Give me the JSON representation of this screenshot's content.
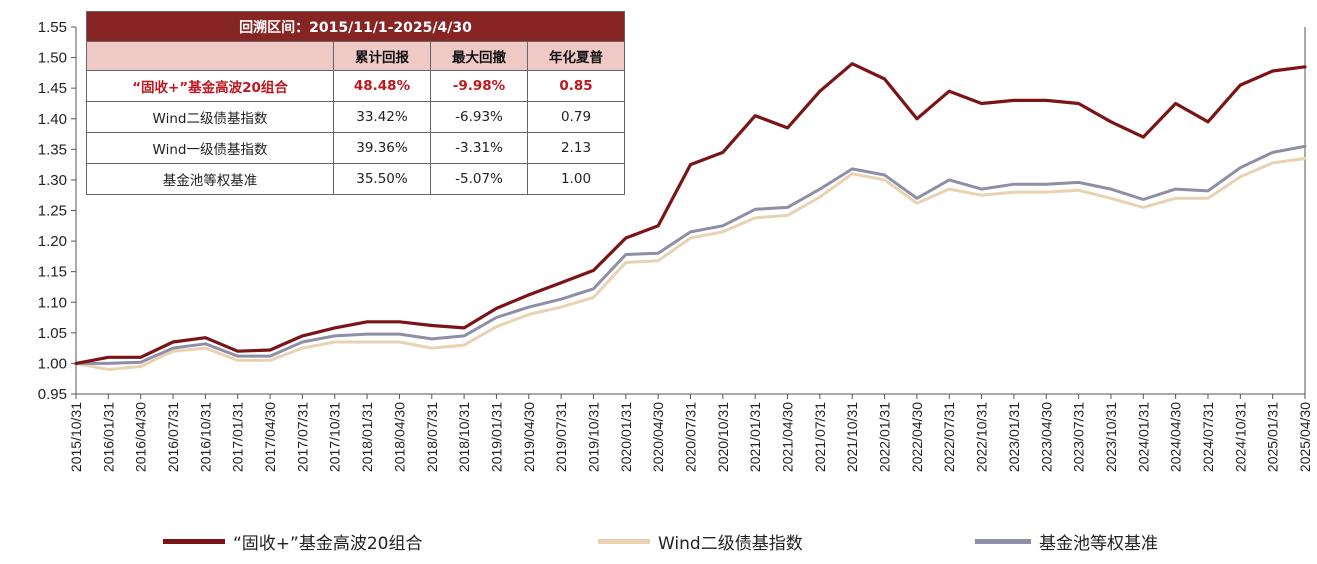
{
  "table": {
    "title": "回溯区间：2015/11/1-2025/4/30",
    "headers": [
      "",
      "累计回报",
      "最大回撤",
      "年化夏普"
    ],
    "rows": [
      {
        "name": "“固收+”基金高波20组合",
        "cum": "48.48%",
        "mdd": "-9.98%",
        "sharpe": "0.85"
      },
      {
        "name": "Wind二级债基指数",
        "cum": "33.42%",
        "mdd": "-6.93%",
        "sharpe": "0.79"
      },
      {
        "name": "Wind一级债基指数",
        "cum": "39.36%",
        "mdd": "-3.31%",
        "sharpe": "2.13"
      },
      {
        "name": "基金池等权基准",
        "cum": "35.50%",
        "mdd": "-5.07%",
        "sharpe": "1.00"
      }
    ]
  },
  "legend": {
    "s1": "“固收+”基金高波20组合",
    "s2": "Wind二级债基指数",
    "s3": "基金池等权基准"
  },
  "colors": {
    "s1": "#7b1416",
    "s2": "#e9d2b2",
    "s3": "#8e8fa6",
    "table_title_bg": "#862523",
    "table_header_bg": "#efc9c6",
    "highlight_text": "#c0161d"
  },
  "chart_data": {
    "type": "line",
    "title": "",
    "xlabel": "",
    "ylabel": "",
    "ylim": [
      0.95,
      1.55
    ],
    "yticks": [
      "0.95",
      "1.00",
      "1.05",
      "1.10",
      "1.15",
      "1.20",
      "1.25",
      "1.30",
      "1.35",
      "1.40",
      "1.45",
      "1.50",
      "1.55"
    ],
    "x": [
      "2015/10/31",
      "2016/01/31",
      "2016/04/30",
      "2016/07/31",
      "2016/10/31",
      "2017/01/31",
      "2017/04/30",
      "2017/07/31",
      "2017/10/31",
      "2018/01/31",
      "2018/04/30",
      "2018/07/31",
      "2018/10/31",
      "2019/01/31",
      "2019/04/30",
      "2019/07/31",
      "2019/10/31",
      "2020/01/31",
      "2020/04/30",
      "2020/07/31",
      "2020/10/31",
      "2021/01/31",
      "2021/04/30",
      "2021/07/31",
      "2021/10/31",
      "2022/01/31",
      "2022/04/30",
      "2022/07/31",
      "2022/10/31",
      "2023/01/31",
      "2023/04/30",
      "2023/07/31",
      "2023/10/31",
      "2024/01/31",
      "2024/04/30",
      "2024/07/31",
      "2024/10/31",
      "2025/01/31",
      "2025/04/30"
    ],
    "legend_position": "bottom",
    "grid": false,
    "series": [
      {
        "name": "“固收+”基金高波20组合",
        "values": [
          1.0,
          1.01,
          1.01,
          1.035,
          1.042,
          1.02,
          1.022,
          1.045,
          1.058,
          1.068,
          1.068,
          1.062,
          1.058,
          1.09,
          1.112,
          1.132,
          1.152,
          1.205,
          1.225,
          1.325,
          1.345,
          1.405,
          1.385,
          1.445,
          1.49,
          1.465,
          1.4,
          1.445,
          1.425,
          1.43,
          1.43,
          1.425,
          1.395,
          1.37,
          1.425,
          1.395,
          1.455,
          1.478,
          1.485
        ]
      },
      {
        "name": "Wind二级债基指数",
        "values": [
          1.0,
          0.99,
          0.995,
          1.02,
          1.025,
          1.005,
          1.005,
          1.025,
          1.035,
          1.035,
          1.035,
          1.025,
          1.03,
          1.06,
          1.08,
          1.092,
          1.108,
          1.165,
          1.168,
          1.205,
          1.215,
          1.238,
          1.242,
          1.272,
          1.31,
          1.3,
          1.262,
          1.285,
          1.275,
          1.28,
          1.28,
          1.283,
          1.27,
          1.255,
          1.27,
          1.27,
          1.305,
          1.328,
          1.335
        ]
      },
      {
        "name": "基金池等权基准",
        "values": [
          1.0,
          1.0,
          1.002,
          1.025,
          1.032,
          1.012,
          1.012,
          1.035,
          1.045,
          1.048,
          1.048,
          1.04,
          1.045,
          1.075,
          1.092,
          1.105,
          1.122,
          1.178,
          1.18,
          1.215,
          1.225,
          1.252,
          1.255,
          1.285,
          1.318,
          1.308,
          1.27,
          1.3,
          1.285,
          1.293,
          1.293,
          1.296,
          1.285,
          1.268,
          1.285,
          1.282,
          1.32,
          1.345,
          1.355
        ]
      }
    ]
  }
}
